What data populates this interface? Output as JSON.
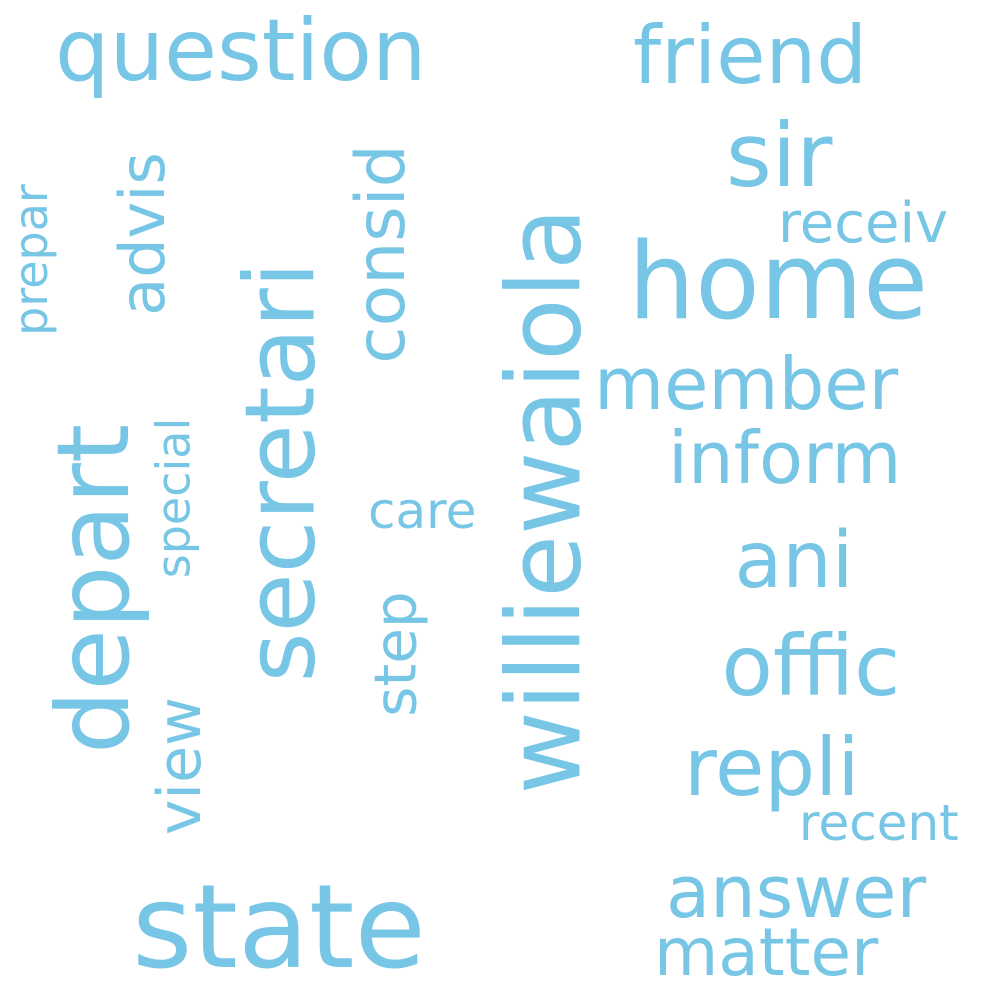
{
  "word_color": "#78c6e6",
  "background": "#ffffff",
  "words": {
    "williewaiola": "williewaiola",
    "secretari": "secretari",
    "state": "state",
    "depart": "depart",
    "home": "home",
    "question": "question",
    "friend": "friend",
    "sir": "sir",
    "consid": "consid",
    "advis": "advis",
    "offic": "offic",
    "ani": "ani",
    "inform": "inform",
    "member": "member",
    "repli": "repli",
    "answer": "answer",
    "matter": "matter",
    "step": "step",
    "view": "view",
    "special": "special",
    "prepar": "prepar",
    "care": "care",
    "receiv": "receiv",
    "recent": "recent"
  }
}
